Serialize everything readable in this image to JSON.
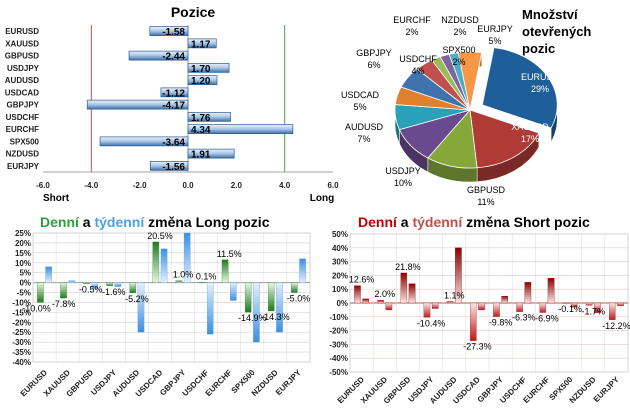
{
  "chart_data": [
    {
      "type": "bar",
      "orientation": "horizontal",
      "title": "Pozice",
      "categories": [
        "EURUSD",
        "XAUUSD",
        "GBPUSD",
        "USDJPY",
        "AUDUSD",
        "USDCAD",
        "GBPJPY",
        "USDCHF",
        "EURCHF",
        "SPX500",
        "NZDUSD",
        "EURJPY"
      ],
      "values": [
        -1.58,
        1.17,
        -2.44,
        1.7,
        1.2,
        -1.12,
        -4.17,
        1.76,
        4.34,
        -3.64,
        1.91,
        -1.56
      ],
      "value_labels": [
        "-1.58",
        "1.17",
        "-2.44",
        "1.70",
        "1.20",
        "-1.12",
        "-4.17",
        "1.76",
        "4.34",
        "-3.64",
        "1.91",
        "-1.56"
      ],
      "xlim": [
        -6,
        6
      ],
      "xticks": [
        "-6.0",
        "-4.0",
        "-2.0",
        "0.0",
        "2.0",
        "4.0",
        "6.0"
      ],
      "left_label": "Short",
      "right_label": "Long",
      "colors": {
        "bar_fill": "#b8cfe6",
        "bar_edge": "#2e5d8f",
        "short_line": "#c0504d",
        "long_line": "#4f9e4f"
      }
    },
    {
      "type": "pie",
      "title": "Množství otevřených pozic",
      "title_lines": [
        "Množství",
        "otevřených",
        "pozic"
      ],
      "slices": [
        {
          "label": "EURUSD",
          "value": 29,
          "pct": "29%",
          "color": "#1f5f99"
        },
        {
          "label": "XAUUSD",
          "value": 17,
          "pct": "17%",
          "color": "#b03a36"
        },
        {
          "label": "GBPUSD",
          "value": 11,
          "pct": "11%",
          "color": "#86a83a"
        },
        {
          "label": "USDJPY",
          "value": 10,
          "pct": "10%",
          "color": "#6a4a8e"
        },
        {
          "label": "AUDUSD",
          "value": 7,
          "pct": "7%",
          "color": "#2aa1b8"
        },
        {
          "label": "USDCAD",
          "value": 5,
          "pct": "5%",
          "color": "#e0802c"
        },
        {
          "label": "GBPJPY",
          "value": 6,
          "pct": "6%",
          "color": "#3f73ad"
        },
        {
          "label": "USDCHF",
          "value": 4,
          "pct": "4%",
          "color": "#c0504d"
        },
        {
          "label": "SPX500",
          "value": 2,
          "pct": "2%",
          "color": "#9bbb59"
        },
        {
          "label": "EURCHF",
          "value": 2,
          "pct": "2%",
          "color": "#8064a2"
        },
        {
          "label": "NZDUSD",
          "value": 2,
          "pct": "2%",
          "color": "#4bacc6"
        },
        {
          "label": "EURJPY",
          "value": 5,
          "pct": "5%",
          "color": "#f79646"
        }
      ]
    },
    {
      "type": "bar",
      "title_parts": [
        {
          "text": "Denní",
          "color": "#2e9e3e"
        },
        {
          "text": " a ",
          "color": "#000000"
        },
        {
          "text": "týdenní",
          "color": "#4aa3df"
        },
        {
          "text": " změna Long pozic",
          "color": "#000000"
        }
      ],
      "categories": [
        "EURUSD",
        "XAUUSD",
        "GBPUSD",
        "USDJPY",
        "AUDUSD",
        "USDCAD",
        "GBPJPY",
        "USDCHF",
        "EURCHF",
        "SPX500",
        "NZDUSD",
        "EURJPY"
      ],
      "series": [
        {
          "name": "Denní",
          "color": "#2e8b2e",
          "values": [
            -10.0,
            -7.8,
            -0.5,
            -1.6,
            -5.2,
            20.5,
            1.0,
            0.1,
            11.5,
            -14.9,
            -14.3,
            -5.0
          ]
        },
        {
          "name": "týdenní",
          "color": "#4a9ee8",
          "values": [
            8,
            1,
            -3,
            -2,
            -25,
            17,
            25,
            -26,
            -9,
            -30,
            -25,
            12
          ]
        }
      ],
      "data_labels": [
        "-10.0%",
        "-7.8%",
        "-0.5%",
        "-1.6%",
        "-5.2%",
        "20.5%",
        "1.0%",
        "0.1%",
        "11.5%",
        "-14.9%",
        "-14.3%",
        "-5.0%"
      ],
      "ylim": [
        -40,
        25
      ],
      "yticks": [
        "25%",
        "20%",
        "15%",
        "10%",
        "5%",
        "0%",
        "-5%",
        "-10%",
        "-15%",
        "-20%",
        "-25%",
        "-30%",
        "-35%",
        "-40%"
      ]
    },
    {
      "type": "bar",
      "title_parts": [
        {
          "text": "Denní",
          "color": "#c00000"
        },
        {
          "text": " a ",
          "color": "#000000"
        },
        {
          "text": "týdenní",
          "color": "#c0504d"
        },
        {
          "text": " změna Short pozic",
          "color": "#000000"
        }
      ],
      "categories": [
        "EURUSD",
        "XAUUSD",
        "GBPUSD",
        "USDJPY",
        "AUDUSD",
        "USDCAD",
        "GBPJPY",
        "USDCHF",
        "EURCHF",
        "SPX500",
        "NZDUSD",
        "EURJPY"
      ],
      "series": [
        {
          "name": "Denní",
          "color": "#b81c1c",
          "values": [
            12.6,
            2.0,
            21.8,
            -10.4,
            1.1,
            -27.3,
            -9.8,
            -6.3,
            -6.9,
            -0.1,
            -1.7,
            -12.2
          ]
        },
        {
          "name": "týdenní",
          "color": "#8b0000",
          "values": [
            3,
            -5,
            14,
            -4,
            40,
            -5,
            5,
            15,
            18,
            -3,
            -7,
            -2
          ]
        }
      ],
      "data_labels": [
        "12.6%",
        "2.0%",
        "21.8%",
        "-10.4%",
        "1.1%",
        "-27.3%",
        "-9.8%",
        "-6.3%",
        "-6.9%",
        "-0.1%",
        "-1.7%",
        "-12.2%"
      ],
      "ylim": [
        -50,
        50
      ],
      "yticks": [
        "50%",
        "40%",
        "30%",
        "20%",
        "10%",
        "0%",
        "-10%",
        "-20%",
        "-30%",
        "-40%",
        "-50%"
      ]
    }
  ]
}
